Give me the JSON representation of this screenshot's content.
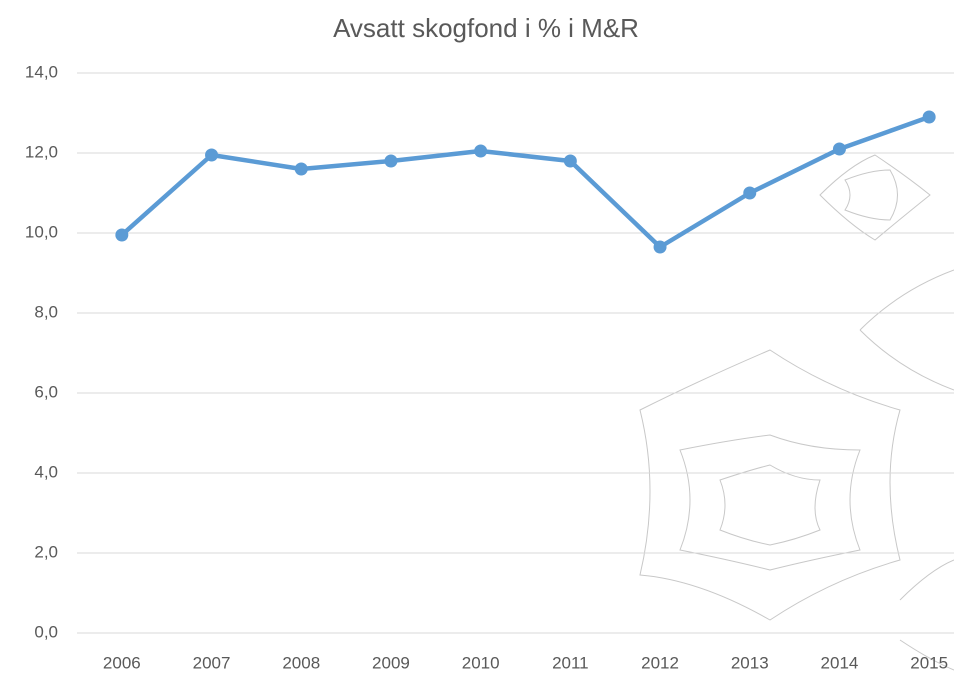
{
  "chart_data": {
    "type": "line",
    "title": "Avsatt skogfond i % i M&R",
    "categories": [
      "2006",
      "2007",
      "2008",
      "2009",
      "2010",
      "2011",
      "2012",
      "2013",
      "2014",
      "2015"
    ],
    "series": [
      {
        "color": "#5b9bd5",
        "values": [
          9.95,
          11.95,
          11.6,
          11.8,
          12.05,
          11.8,
          9.65,
          11.0,
          12.1,
          12.9
        ]
      }
    ],
    "ylim": [
      0,
      14
    ],
    "yticks": [
      {
        "value": 0,
        "label": "0,0"
      },
      {
        "value": 2,
        "label": "2,0"
      },
      {
        "value": 4,
        "label": "4,0"
      },
      {
        "value": 6,
        "label": "6,0"
      },
      {
        "value": 8,
        "label": "8,0"
      },
      {
        "value": 10,
        "label": "10,0"
      },
      {
        "value": 12,
        "label": "12,0"
      },
      {
        "value": 14,
        "label": "14,0"
      }
    ],
    "grid": true
  }
}
